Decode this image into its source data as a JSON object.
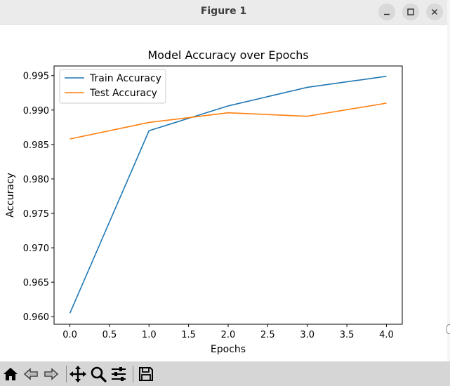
{
  "window": {
    "title": "Figure 1",
    "buttons": [
      "minimize-icon",
      "maximize-icon",
      "close-icon"
    ]
  },
  "toolbar": {
    "tools": [
      "home-icon",
      "back-arrow-icon",
      "forward-arrow-icon",
      "pan-icon",
      "zoom-icon",
      "configure-subplots-icon",
      "save-icon"
    ]
  },
  "chart_data": {
    "type": "line",
    "title": "Model Accuracy over Epochs",
    "xlabel": "Epochs",
    "ylabel": "Accuracy",
    "x": [
      0,
      1,
      2,
      3,
      4
    ],
    "xlim": [
      -0.2,
      4.2
    ],
    "ylim": [
      0.9589,
      0.9964
    ],
    "xticks": [
      0.0,
      0.5,
      1.0,
      1.5,
      2.0,
      2.5,
      3.0,
      3.5,
      4.0
    ],
    "xtick_labels": [
      "0.0",
      "0.5",
      "1.0",
      "1.5",
      "2.0",
      "2.5",
      "3.0",
      "3.5",
      "4.0"
    ],
    "yticks": [
      0.96,
      0.965,
      0.97,
      0.975,
      0.98,
      0.985,
      0.99,
      0.995
    ],
    "ytick_labels": [
      "0.960",
      "0.965",
      "0.970",
      "0.975",
      "0.980",
      "0.985",
      "0.990",
      "0.995"
    ],
    "grid": false,
    "legend_position": "top-left",
    "series": [
      {
        "name": "Train Accuracy",
        "color": "#1f77b4",
        "values": [
          0.9605,
          0.987,
          0.9906,
          0.9933,
          0.9949
        ]
      },
      {
        "name": "Test Accuracy",
        "color": "#ff7f0e",
        "values": [
          0.9858,
          0.9882,
          0.9896,
          0.9891,
          0.991
        ]
      }
    ]
  }
}
